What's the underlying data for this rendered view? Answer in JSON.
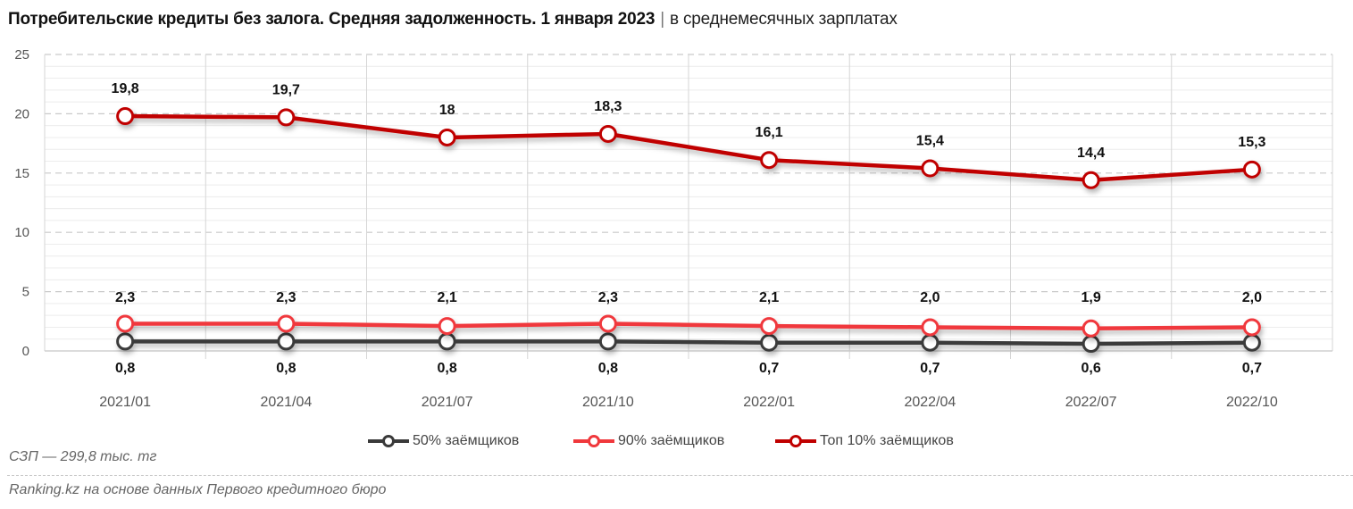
{
  "title": {
    "main": "Потребительские кредиты без залога. Средняя задолженность. 1 января 2023",
    "separator": "|",
    "subtitle": "в среднемесячных зарплатах"
  },
  "note": "СЗП — 299,8 тыс. тг",
  "source": "Ranking.kz на основе данных Первого кредитного бюро",
  "legend": [
    {
      "label": "50% заёмщиков",
      "color": "#3a3a3a"
    },
    {
      "label": "90% заёмщиков",
      "color": "#f0383c"
    },
    {
      "label": "Топ 10% заёмщиков",
      "color": "#c00000"
    }
  ],
  "chart_data": {
    "type": "line",
    "title": "Потребительские кредиты без залога. Средняя задолженность. 1 января 2023 | в среднемесячных зарплатах",
    "xlabel": "",
    "ylabel": "",
    "categories": [
      "2021/01",
      "2021/04",
      "2021/07",
      "2021/10",
      "2022/01",
      "2022/04",
      "2022/07",
      "2022/10"
    ],
    "ylim": [
      0,
      25
    ],
    "yticks": [
      0,
      5,
      10,
      15,
      20,
      25
    ],
    "grid": {
      "major": "dashed every 5",
      "minor": "solid every 1",
      "vertical": "between categories"
    },
    "legend_position": "bottom",
    "series": [
      {
        "name": "50% заёмщиков",
        "color": "#3a3a3a",
        "values": [
          0.8,
          0.8,
          0.8,
          0.8,
          0.7,
          0.7,
          0.6,
          0.7
        ],
        "labels": [
          "0,8",
          "0,8",
          "0,8",
          "0,8",
          "0,7",
          "0,7",
          "0,6",
          "0,7"
        ],
        "label_position": "below"
      },
      {
        "name": "90% заёмщиков",
        "color": "#f0383c",
        "values": [
          2.3,
          2.3,
          2.1,
          2.3,
          2.1,
          2.0,
          1.9,
          2.0
        ],
        "labels": [
          "2,3",
          "2,3",
          "2,1",
          "2,3",
          "2,1",
          "2,0",
          "1,9",
          "2,0"
        ],
        "label_position": "above"
      },
      {
        "name": "Топ 10% заёмщиков",
        "color": "#c00000",
        "values": [
          19.8,
          19.7,
          18.0,
          18.3,
          16.1,
          15.4,
          14.4,
          15.3
        ],
        "labels": [
          "19,8",
          "19,7",
          "18",
          "18,3",
          "16,1",
          "15,4",
          "14,4",
          "15,3"
        ],
        "label_position": "above"
      }
    ]
  }
}
